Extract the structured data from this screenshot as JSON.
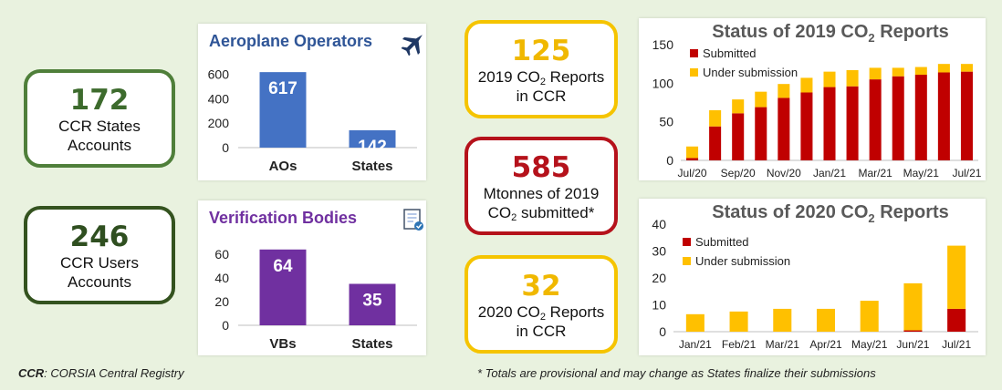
{
  "kpis": {
    "states_accounts": {
      "value": "172",
      "line1": "CCR States",
      "line2": "Accounts"
    },
    "users_accounts": {
      "value": "246",
      "line1": "CCR Users",
      "line2": "Accounts"
    },
    "reports_2019": {
      "value": "125",
      "line1a": "2019 CO",
      "line1sub": "2",
      "line1b": " Reports",
      "line2": "in CCR"
    },
    "mtonnes": {
      "value": "585",
      "line1": "Mtonnes of 2019",
      "line2a": "CO",
      "line2sub": "2",
      "line2b": " submitted*"
    },
    "reports_2020": {
      "value": "32",
      "line1a": "2020 CO",
      "line1sub": "2",
      "line1b": " Reports",
      "line2": "in CCR"
    }
  },
  "footnotes": {
    "ccr_abbr": "CCR",
    "ccr_def": ": CORSIA Central Registry",
    "provisional": "* Totals are provisional and may change as States finalize their submissions"
  },
  "colors": {
    "ao_bar": "#4472c4",
    "vb_bar": "#7030a0",
    "submitted": "#c00000",
    "under_submission": "#ffc000",
    "ao_title": "#2f5597",
    "vb_title": "#7030a0"
  },
  "icons": {
    "aeroplane": "plane-icon",
    "verification": "document-check-icon"
  },
  "chart_data": [
    {
      "type": "bar",
      "title": "Aeroplane Operators",
      "categories": [
        "AOs",
        "States"
      ],
      "values": [
        617,
        142
      ],
      "ylim": [
        0,
        700
      ],
      "yticks": [
        0,
        200,
        400,
        600
      ]
    },
    {
      "type": "bar",
      "title": "Verification Bodies",
      "categories": [
        "VBs",
        "States"
      ],
      "values": [
        64,
        35
      ],
      "ylim": [
        0,
        70
      ],
      "yticks": [
        0,
        20,
        40,
        60
      ]
    },
    {
      "type": "bar",
      "stacked": true,
      "title": "Status of 2019 CO",
      "title_sub": "2",
      "title_suffix": " Reports",
      "x": [
        "Jul/20",
        "Aug/20",
        "Sep/20",
        "Oct/20",
        "Nov/20",
        "Dec/20",
        "Jan/21",
        "Feb/21",
        "Mar/21",
        "Apr/21",
        "May/21",
        "Jun/21",
        "Jul/21"
      ],
      "tick_labels": [
        "Jul/20",
        "Sep/20",
        "Nov/20",
        "Jan/21",
        "Mar/21",
        "May/21",
        "Jul/21"
      ],
      "series": [
        {
          "name": "Submitted",
          "values": [
            3,
            44,
            61,
            69,
            81,
            88,
            95,
            96,
            105,
            109,
            111,
            114,
            115
          ]
        },
        {
          "name": "Under submission",
          "values": [
            15,
            21,
            18,
            20,
            18,
            19,
            20,
            21,
            15,
            11,
            10,
            11,
            10
          ]
        }
      ],
      "ylim": [
        0,
        150
      ],
      "yticks": [
        0,
        50,
        100,
        150
      ],
      "legend": "top-left"
    },
    {
      "type": "bar",
      "stacked": true,
      "title": "Status of 2020 CO",
      "title_sub": "2",
      "title_suffix": " Reports",
      "x": [
        "Jan/21",
        "Feb/21",
        "Mar/21",
        "Apr/21",
        "May/21",
        "Jun/21",
        "Jul/21"
      ],
      "series": [
        {
          "name": "Submitted",
          "values": [
            0,
            0,
            0,
            0,
            0,
            0.5,
            8.5
          ]
        },
        {
          "name": "Under submission",
          "values": [
            6.5,
            7.5,
            8.5,
            8.5,
            11.5,
            17.5,
            23.5
          ]
        }
      ],
      "ylim": [
        0,
        40
      ],
      "yticks": [
        0,
        10,
        20,
        30,
        40
      ],
      "legend": "top-left"
    }
  ]
}
